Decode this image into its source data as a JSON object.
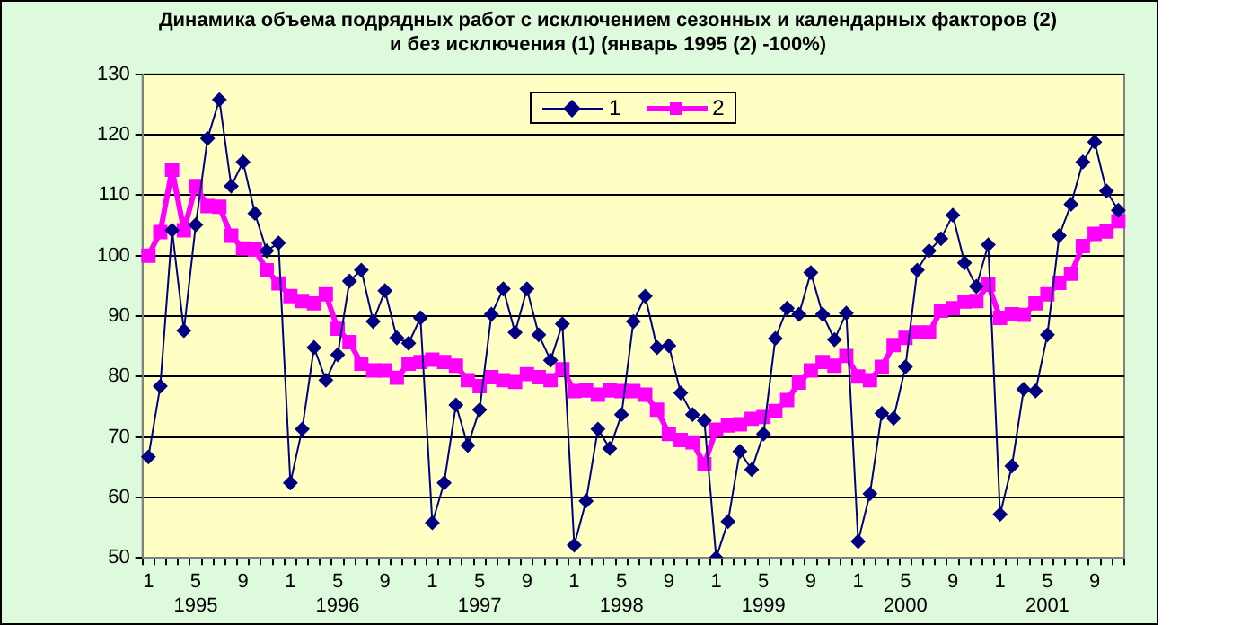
{
  "chart_data": {
    "type": "line",
    "title": "Динамика объема подрядных работ с исключением сезонных и календарных факторов (2)\nи без исключения (1) (январь 1995 (2) -100%)",
    "categories": [
      "1",
      null,
      null,
      null,
      "5\n1995",
      null,
      null,
      null,
      "9",
      null,
      null,
      null,
      "1",
      null,
      null,
      null,
      "5\n1996",
      null,
      null,
      null,
      "9",
      null,
      null,
      null,
      "1",
      null,
      null,
      null,
      "5\n1997",
      null,
      null,
      null,
      "9",
      null,
      null,
      null,
      "1",
      null,
      null,
      null,
      "5\n1998",
      null,
      null,
      null,
      "9",
      null,
      null,
      null,
      "1",
      null,
      null,
      null,
      "5\n1999",
      null,
      null,
      null,
      "9",
      null,
      null,
      null,
      "1",
      null,
      null,
      null,
      "5\n2000",
      null,
      null,
      null,
      "9",
      null,
      null,
      null,
      "1",
      null,
      null,
      null,
      "5\n2001",
      null,
      null,
      null,
      "9",
      null,
      null
    ],
    "series": [
      {
        "name": "1",
        "color": "#000080",
        "marker": "diamond",
        "line_style": "solid",
        "values": [
          66.7,
          78.4,
          104.2,
          87.6,
          105.1,
          119.4,
          125.8,
          111.5,
          115.5,
          107,
          100.8,
          102.1,
          62.4,
          71.3,
          84.8,
          79.4,
          83.6,
          95.8,
          97.6,
          89.1,
          94.2,
          86.4,
          85.5,
          89.7,
          55.8,
          62.4,
          75.3,
          68.6,
          74.5,
          90.3,
          94.5,
          87.3,
          94.5,
          86.9,
          82.7,
          88.7,
          52.1,
          59.4,
          71.3,
          68.1,
          73.7,
          89.1,
          93.3,
          84.8,
          85.1,
          77.3,
          73.7,
          72.7,
          50,
          56,
          67.6,
          64.6,
          70.5,
          86.3,
          91.3,
          90.3,
          97.2,
          90.3,
          86.1,
          90.5,
          52.7,
          60.6,
          73.9,
          73.1,
          81.6,
          97.6,
          100.8,
          102.8,
          106.7,
          98.8,
          94.9,
          101.8,
          57.2,
          65.2,
          77.9,
          77.6,
          86.9,
          103.3,
          108.5,
          115.5,
          118.8,
          110.7,
          107.5
        ]
      },
      {
        "name": "2",
        "color": "#ff00ff",
        "marker": "square",
        "line_style": "solid",
        "values": [
          100,
          103.9,
          114.2,
          104.2,
          111.5,
          108.2,
          108.1,
          103.3,
          101.2,
          101,
          97.6,
          95.4,
          93.3,
          92.5,
          92.1,
          93.6,
          87.9,
          85.7,
          82.1,
          81,
          81,
          79.8,
          82.1,
          82.4,
          82.8,
          82.4,
          81.8,
          79.4,
          78.4,
          79.9,
          79.4,
          79.1,
          80.4,
          79.9,
          79.4,
          81.2,
          77.6,
          77.7,
          77,
          77.7,
          77.6,
          77.6,
          77,
          74.5,
          70.5,
          69.5,
          69.1,
          65.5,
          71.2,
          71.9,
          72.1,
          73,
          73.3,
          74.3,
          76.1,
          79,
          81,
          82.4,
          81.8,
          83.4,
          80,
          79.4,
          81.6,
          85.2,
          86.4,
          87.3,
          87.3,
          90.9,
          91.3,
          92.4,
          92.5,
          95.2,
          89.7,
          90.3,
          90.2,
          92.1,
          93.6,
          95.5,
          97,
          101.6,
          103.6,
          104,
          105.7
        ]
      }
    ],
    "ylim": [
      50,
      130
    ],
    "yticks": [
      50,
      60,
      70,
      80,
      90,
      100,
      110,
      120,
      130
    ],
    "grid": "y",
    "legend": "top"
  }
}
